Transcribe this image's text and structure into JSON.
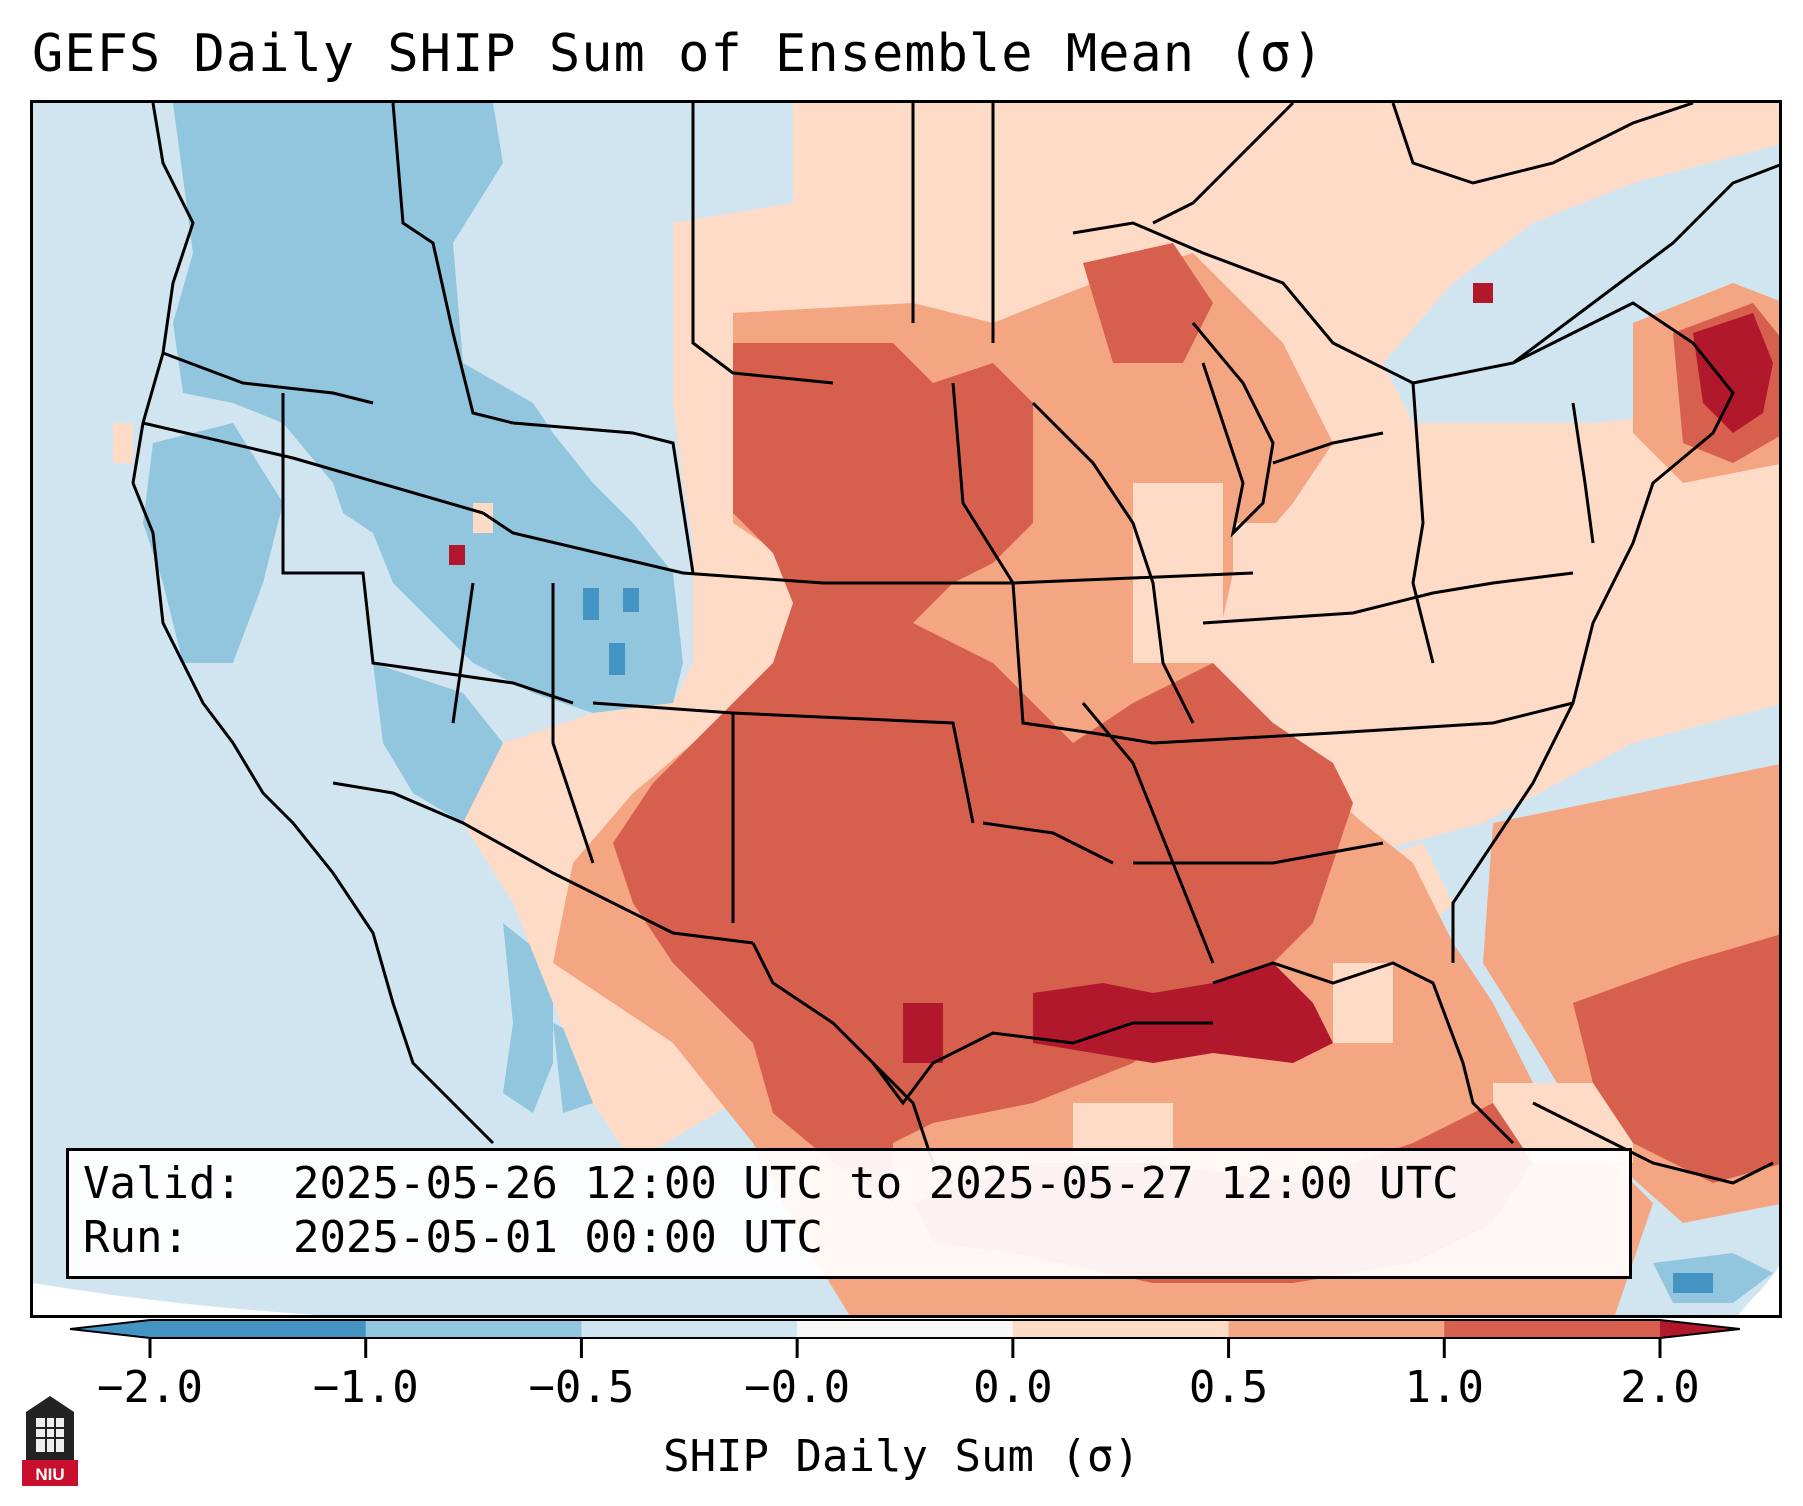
{
  "title": "GEFS Daily SHIP Sum of Ensemble Mean (σ)",
  "info": {
    "valid_label": "Valid:",
    "valid_value": "2025-05-26 12:00 UTC to 2025-05-27 12:00 UTC",
    "run_label": "Run:",
    "run_value": "2025-05-01 00:00 UTC"
  },
  "colorbar": {
    "label": "SHIP Daily Sum (σ)",
    "tick_labels": [
      "−2.0",
      "−1.0",
      "−0.5",
      "−0.0",
      "0.0",
      "0.5",
      "1.0",
      "2.0"
    ],
    "bins": [
      {
        "from": -2.0,
        "to": -1.0,
        "color": "#92c5de"
      },
      {
        "from": -1.0,
        "to": -0.5,
        "color": "#92c5de"
      },
      {
        "from": -0.5,
        "to": -0.0,
        "color": "#d1e5f0"
      },
      {
        "from": -0.0,
        "to": 0.0,
        "color": "#f7f7f7"
      },
      {
        "from": 0.0,
        "to": 0.5,
        "color": "#fddbc7"
      },
      {
        "from": 0.5,
        "to": 1.0,
        "color": "#f4a582"
      },
      {
        "from": 1.0,
        "to": 2.0,
        "color": "#d6604d"
      }
    ],
    "under_color": "#4393c3",
    "over_color": "#b2182b",
    "first_bin_color": "#4393c3"
  },
  "logo": {
    "text": "NIU"
  },
  "colors": {
    "strong_neg": "#4393c3",
    "mod_neg": "#92c5de",
    "weak_neg": "#d1e5f0",
    "weak_pos": "#fddbc7",
    "mod_pos": "#f4a582",
    "strong_pos": "#d6604d",
    "extreme_pos": "#b2182b"
  }
}
